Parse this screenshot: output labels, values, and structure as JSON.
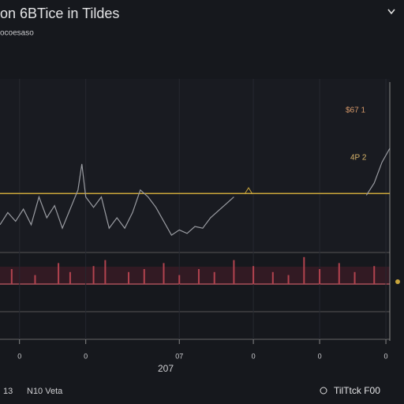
{
  "chart_data": [
    {
      "type": "line",
      "title": "on 6BTice in Tildes",
      "subtitle": "ocoesaso",
      "x": [
        0,
        2,
        4,
        6,
        8,
        10,
        12,
        14,
        16,
        18,
        20,
        21,
        22,
        24,
        26,
        28,
        30,
        32,
        34,
        36,
        38,
        40,
        42,
        44,
        46,
        48,
        50,
        52,
        54,
        56,
        58,
        60,
        62,
        94,
        96,
        98,
        100
      ],
      "series": [
        {
          "color": "#9a9ca2",
          "values": [
            16,
            23,
            18,
            25,
            16,
            32,
            20,
            27,
            14,
            25,
            36,
            51,
            32,
            26,
            32,
            14,
            20,
            14,
            23,
            36,
            32,
            26,
            18,
            10,
            13,
            11,
            15,
            14,
            20,
            24,
            28,
            32,
            null,
            33,
            40,
            52,
            60
          ]
        }
      ],
      "xlim": [
        0,
        100
      ],
      "xticks": [
        {
          "value": 5,
          "label": "0"
        },
        {
          "value": 22,
          "label": "0"
        },
        {
          "value": 46,
          "label": "07"
        },
        {
          "value": 65,
          "label": "0"
        },
        {
          "value": 82,
          "label": "0"
        },
        {
          "value": 99,
          "label": "0"
        }
      ],
      "xlabel": "207",
      "ylim": [
        0,
        100
      ],
      "reference_line": {
        "value": 34,
        "color": "#c9a53b"
      },
      "price_label": "$67 1",
      "target_label": "4P 2"
    },
    {
      "type": "bar",
      "x": [
        3,
        9,
        15,
        18,
        24,
        27,
        33,
        37,
        42,
        46,
        51,
        55,
        60,
        65,
        70,
        74,
        78,
        82,
        87,
        91,
        96
      ],
      "values": [
        5,
        3,
        7,
        4,
        6,
        8,
        4,
        5,
        7,
        3,
        5,
        4,
        8,
        6,
        4,
        3,
        9,
        5,
        7,
        4,
        6
      ],
      "color": "#b2434f",
      "xlim": [
        0,
        100
      ],
      "ylim": [
        0,
        10
      ]
    }
  ],
  "footer": {
    "left_number": "13",
    "left_text": "N10 Veta",
    "right_text": "TilTtck F00"
  }
}
